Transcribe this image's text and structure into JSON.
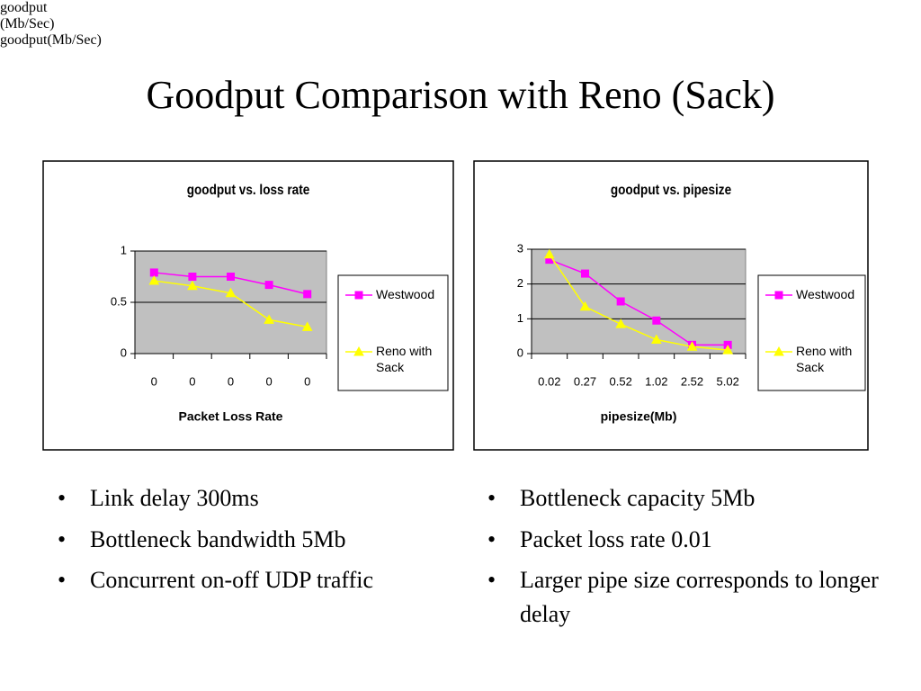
{
  "title": "Goodput Comparison with Reno (Sack)",
  "chart_data": [
    {
      "type": "line",
      "title": "goodput vs. loss rate",
      "x_label": "Packet Loss Rate",
      "y_label": "goodput (Mb/Sec)",
      "categories": [
        "0",
        "0",
        "0",
        "0",
        "0"
      ],
      "series": [
        {
          "name": "Westwood",
          "color": "#ff00ff",
          "marker": "square",
          "values": [
            0.79,
            0.75,
            0.75,
            0.67,
            0.58
          ]
        },
        {
          "name": "Reno with Sack",
          "color": "#ffff00",
          "marker": "triangle",
          "values": [
            0.71,
            0.66,
            0.59,
            0.33,
            0.26
          ]
        }
      ],
      "ylim": [
        0,
        1
      ],
      "yticks": [
        0,
        0.5,
        1
      ],
      "grid": true,
      "legend": "right"
    },
    {
      "type": "line",
      "title": "goodput vs. pipesize",
      "x_label": "pipesize(Mb)",
      "y_label": "goodput(Mb/Sec)",
      "categories": [
        "0.02",
        "0.27",
        "0.52",
        "1.02",
        "2.52",
        "5.02"
      ],
      "series": [
        {
          "name": "Westwood",
          "color": "#ff00ff",
          "marker": "square",
          "values": [
            2.7,
            2.3,
            1.5,
            0.95,
            0.25,
            0.25
          ]
        },
        {
          "name": "Reno with Sack",
          "color": "#ffff00",
          "marker": "triangle",
          "values": [
            2.85,
            1.35,
            0.85,
            0.4,
            0.2,
            0.1
          ]
        }
      ],
      "ylim": [
        0,
        3
      ],
      "yticks": [
        0,
        1,
        2,
        3
      ],
      "grid": true,
      "legend": "right"
    }
  ],
  "bullets": {
    "left": [
      "Link delay 300ms",
      "Bottleneck bandwidth 5Mb",
      "Concurrent on-off UDP traffic"
    ],
    "right": [
      "Bottleneck capacity 5Mb",
      "Packet loss rate 0.01",
      "Larger pipe size corresponds to longer delay"
    ]
  }
}
